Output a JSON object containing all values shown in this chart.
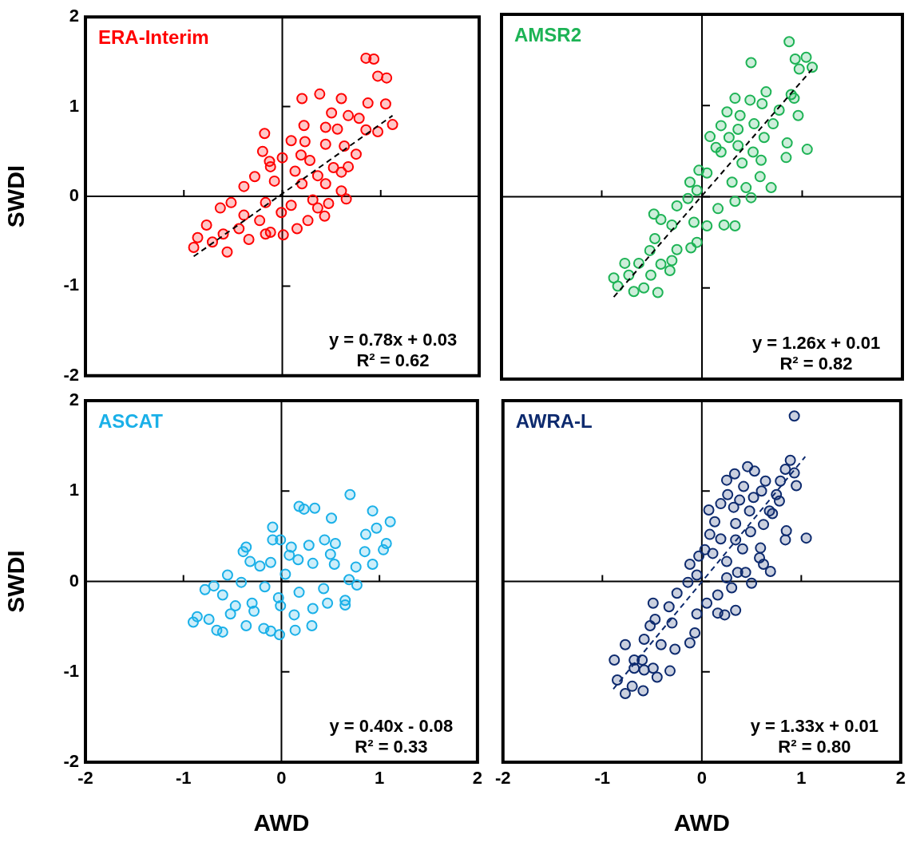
{
  "chart_data": [
    {
      "type": "scatter",
      "ylabel": "SWDI",
      "xlim": [
        -2,
        2
      ],
      "ylim": [
        -2,
        2
      ],
      "xticks": [
        -2,
        -1,
        0,
        1,
        2
      ],
      "yticks": [
        -2,
        -1,
        0,
        1,
        2
      ],
      "tick_labels": "y",
      "annotations": [
        "y = 0.78x + 0.03",
        "R² = 0.62"
      ],
      "series": [
        {
          "name": "ERA-Interim",
          "color": "#ff0000",
          "marker": "circle",
          "x": [
            0.85,
            0.93,
            0.97,
            1.06,
            0.38,
            0.2,
            0.6,
            0.87,
            1.05,
            0.5,
            0.67,
            0.78,
            1.12,
            0.97,
            0.85,
            0.44,
            0.56,
            0.22,
            -0.18,
            0.09,
            0.23,
            0.44,
            0.63,
            -0.2,
            0.75,
            0.19,
            0,
            -0.13,
            -0.12,
            0.28,
            0.52,
            0.67,
            0.6,
            0.13,
            -0.28,
            -0.08,
            0.36,
            0.44,
            -0.39,
            0.2,
            0.6,
            0.65,
            0.47,
            -0.52,
            -0.63,
            -0.17,
            0.09,
            0.31,
            0.36,
            0.43,
            0.26,
            -0.01,
            0.15,
            0.01,
            -0.12,
            -0.34,
            -0.44,
            -0.77,
            -0.86,
            -0.9,
            -0.71,
            -0.56,
            -0.6,
            -0.23,
            -0.39,
            -0.17
          ],
          "values": [
            1.54,
            1.53,
            1.34,
            1.32,
            1.14,
            1.09,
            1.09,
            1.04,
            1.03,
            0.93,
            0.9,
            0.87,
            0.8,
            0.72,
            0.74,
            0.77,
            0.75,
            0.79,
            0.7,
            0.62,
            0.61,
            0.58,
            0.56,
            0.5,
            0.47,
            0.46,
            0.43,
            0.39,
            0.33,
            0.4,
            0.32,
            0.33,
            0.27,
            0.28,
            0.22,
            0.17,
            0.23,
            0.14,
            0.11,
            0.14,
            0.06,
            -0.03,
            -0.08,
            -0.07,
            -0.13,
            -0.07,
            -0.1,
            -0.04,
            -0.13,
            -0.22,
            -0.27,
            -0.18,
            -0.36,
            -0.43,
            -0.4,
            -0.48,
            -0.36,
            -0.32,
            -0.46,
            -0.57,
            -0.51,
            -0.62,
            -0.42,
            -0.27,
            -0.21,
            -0.42
          ]
        },
        {
          "type": "line",
          "color": "#000000",
          "marker": "none",
          "line_style": "dashed",
          "x": [
            -0.9,
            1.12
          ],
          "values": [
            -0.67,
            0.9
          ]
        }
      ]
    },
    {
      "type": "scatter",
      "xlim": [
        -2,
        2
      ],
      "ylim": [
        -2,
        2
      ],
      "xticks": [
        -2,
        -1,
        0,
        1,
        2
      ],
      "yticks": [
        -2,
        -1,
        0,
        1,
        2
      ],
      "tick_labels": false,
      "annotations": [
        "y = 1.26x + 0.01",
        "R² = 0.82"
      ],
      "series": [
        {
          "name": "AMSR2",
          "color": "#1db355",
          "marker": "circle",
          "x": [
            0.87,
            0.49,
            0.93,
            1.04,
            0.97,
            1.1,
            0.64,
            0.89,
            0.92,
            0.33,
            0.48,
            0.6,
            0.77,
            0.25,
            0.38,
            0.96,
            0.52,
            0.71,
            0.19,
            0.36,
            0.08,
            0.62,
            0.27,
            0.85,
            1.05,
            0.14,
            0.19,
            0.36,
            0.51,
            0.84,
            0.59,
            0.4,
            -0.03,
            0.05,
            0.58,
            0.3,
            -0.12,
            0.69,
            0.44,
            0.49,
            0.33,
            -0.05,
            -0.14,
            0.16,
            -0.25,
            -0.48,
            0.05,
            0.22,
            0.33,
            -0.08,
            -0.3,
            -0.41,
            -0.47,
            -0.05,
            -0.11,
            -0.25,
            -0.52,
            -0.3,
            -0.77,
            -0.63,
            -0.41,
            -0.32,
            -0.73,
            -0.51,
            -0.88,
            -0.84,
            -0.68,
            -0.58,
            -0.44
          ],
          "values": [
            1.7,
            1.47,
            1.51,
            1.53,
            1.4,
            1.42,
            1.15,
            1.12,
            1.08,
            1.08,
            1.06,
            1.02,
            0.95,
            0.93,
            0.89,
            0.89,
            0.8,
            0.8,
            0.78,
            0.74,
            0.66,
            0.65,
            0.65,
            0.59,
            0.52,
            0.54,
            0.49,
            0.56,
            0.49,
            0.43,
            0.4,
            0.37,
            0.29,
            0.26,
            0.22,
            0.16,
            0.16,
            0.1,
            0.1,
            -0.01,
            -0.05,
            0.07,
            -0.02,
            -0.13,
            -0.1,
            -0.19,
            -0.32,
            -0.31,
            -0.32,
            -0.28,
            -0.31,
            -0.25,
            -0.46,
            -0.5,
            -0.56,
            -0.58,
            -0.59,
            -0.7,
            -0.73,
            -0.73,
            -0.74,
            -0.81,
            -0.86,
            -0.86,
            -0.89,
            -0.98,
            -1.04,
            -1.0,
            -1.05
          ]
        },
        {
          "type": "line",
          "color": "#000000",
          "marker": "none",
          "line_style": "dashed",
          "x": [
            -0.88,
            1.1
          ],
          "values": [
            -1.1,
            1.4
          ]
        }
      ]
    },
    {
      "type": "scatter",
      "xlabel": "AWD",
      "ylabel": "SWDI",
      "xlim": [
        -2,
        2
      ],
      "ylim": [
        -2,
        2
      ],
      "xticks": [
        -2,
        -1,
        0,
        1,
        2
      ],
      "yticks": [
        -2,
        -1,
        0,
        1,
        2
      ],
      "annotations": [
        "y = 0.40x - 0.08",
        "R² = 0.33"
      ],
      "series": [
        {
          "name": "ASCAT",
          "color": "#1ab0e8",
          "marker": "circle",
          "x": [
            0.7,
            0.18,
            0.23,
            0.34,
            0.93,
            0.51,
            1.11,
            -0.09,
            0.97,
            0.86,
            -0.09,
            -0.01,
            0.44,
            0.55,
            1.07,
            -0.36,
            -0.39,
            0.1,
            0.28,
            0.08,
            0.85,
            1.04,
            0.5,
            0.93,
            0.17,
            -0.32,
            -0.11,
            0.32,
            0.76,
            0.54,
            -0.55,
            -0.22,
            0.04,
            -0.41,
            0.69,
            0.77,
            -0.78,
            -0.69,
            0.43,
            -0.17,
            0.18,
            0.65,
            0.65,
            0.47,
            -0.6,
            -0.47,
            -0.3,
            -0.01,
            0.32,
            -0.86,
            -0.9,
            -0.74,
            -0.66,
            -0.6,
            -0.36,
            -0.18,
            -0.11,
            -0.02,
            0.14,
            0.31,
            0.13,
            -0.52,
            -0.28,
            -0.03
          ],
          "values": [
            0.96,
            0.83,
            0.8,
            0.81,
            0.78,
            0.7,
            0.66,
            0.6,
            0.59,
            0.52,
            0.46,
            0.46,
            0.46,
            0.42,
            0.42,
            0.38,
            0.33,
            0.38,
            0.4,
            0.29,
            0.33,
            0.35,
            0.3,
            0.19,
            0.24,
            0.22,
            0.21,
            0.2,
            0.16,
            0.19,
            0.07,
            0.17,
            0.08,
            -0.01,
            0.02,
            -0.04,
            -0.09,
            -0.05,
            -0.08,
            -0.06,
            -0.12,
            -0.21,
            -0.26,
            -0.24,
            -0.15,
            -0.27,
            -0.24,
            -0.27,
            -0.3,
            -0.39,
            -0.45,
            -0.42,
            -0.54,
            -0.56,
            -0.49,
            -0.52,
            -0.55,
            -0.59,
            -0.54,
            -0.49,
            -0.37,
            -0.36,
            -0.33,
            -0.18
          ]
        }
      ]
    },
    {
      "type": "scatter",
      "xlabel": "AWD",
      "xlim": [
        -2,
        2
      ],
      "ylim": [
        -2,
        2
      ],
      "xticks": [
        -2,
        -1,
        0,
        1,
        2
      ],
      "yticks": [
        -2,
        -1,
        0,
        1,
        2
      ],
      "tick_labels": "x",
      "annotations": [
        "y = 1.33x + 0.01",
        "R² = 0.80"
      ],
      "series": [
        {
          "name": "AWRA-L",
          "color": "#0d2a6e",
          "marker": "circle",
          "x": [
            0.93,
            0.89,
            0.46,
            0.53,
            0.84,
            0.93,
            0.33,
            0.25,
            0.64,
            0.79,
            0.95,
            0.42,
            0.6,
            0.26,
            0.75,
            0.78,
            0.38,
            0.52,
            0.19,
            0.07,
            0.32,
            0.68,
            0.48,
            0.71,
            0.13,
            0.34,
            0.62,
            0.85,
            0.84,
            1.05,
            0.49,
            0.08,
            0.19,
            0.34,
            0.59,
            0.41,
            0.03,
            -0.03,
            0.11,
            0.58,
            -0.12,
            0.25,
            0.62,
            0.69,
            0.44,
            0.36,
            0.5,
            0.25,
            0.3,
            -0.05,
            -0.14,
            0.16,
            -0.25,
            0.05,
            0.34,
            0.16,
            0.23,
            -0.49,
            -0.33,
            -0.05,
            -0.47,
            -0.3,
            -0.07,
            -0.52,
            -0.12,
            -0.77,
            -0.58,
            -0.41,
            -0.27,
            -0.88,
            -0.68,
            -0.6,
            -0.49,
            -0.32,
            -0.45,
            -0.58,
            -0.68,
            -0.85,
            -0.7,
            -0.77,
            -0.59
          ],
          "values": [
            1.83,
            1.34,
            1.27,
            1.22,
            1.24,
            1.2,
            1.19,
            1.12,
            1.11,
            1.11,
            1.06,
            1.05,
            1.0,
            0.96,
            0.96,
            0.89,
            0.9,
            0.93,
            0.86,
            0.79,
            0.82,
            0.78,
            0.78,
            0.75,
            0.66,
            0.64,
            0.63,
            0.56,
            0.46,
            0.48,
            0.55,
            0.52,
            0.47,
            0.46,
            0.37,
            0.36,
            0.35,
            0.28,
            0.31,
            0.26,
            0.19,
            0.22,
            0.19,
            0.11,
            0.1,
            0.1,
            -0.02,
            0.04,
            -0.07,
            0.07,
            -0.01,
            -0.15,
            -0.13,
            -0.24,
            -0.32,
            -0.35,
            -0.37,
            -0.24,
            -0.28,
            -0.36,
            -0.42,
            -0.46,
            -0.57,
            -0.49,
            -0.68,
            -0.7,
            -0.64,
            -0.7,
            -0.75,
            -0.87,
            -0.87,
            -0.87,
            -0.96,
            -0.99,
            -1.06,
            -0.98,
            -0.96,
            -1.09,
            -1.16,
            -1.24,
            -1.21
          ]
        },
        {
          "type": "line",
          "color": "#0d2a6e",
          "marker": "none",
          "line_style": "dashed",
          "x": [
            -0.89,
            1.04
          ],
          "values": [
            -1.19,
            1.38
          ]
        }
      ]
    }
  ]
}
